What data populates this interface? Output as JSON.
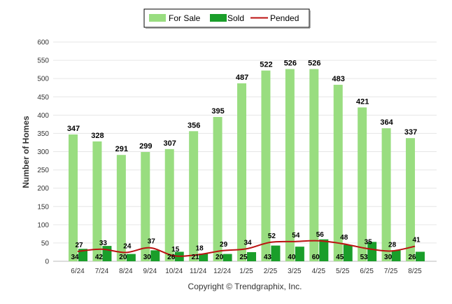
{
  "chart_data": {
    "type": "bar",
    "title": "",
    "xlabel": "",
    "ylabel": "Number of Homes",
    "ylim": [
      0,
      600
    ],
    "ytick_step": 50,
    "grid": true,
    "legend_position": "top-center",
    "categories": [
      "6/24",
      "7/24",
      "8/24",
      "9/24",
      "10/24",
      "11/24",
      "12/24",
      "1/25",
      "2/25",
      "3/25",
      "4/25",
      "5/25",
      "6/25",
      "7/25",
      "8/25"
    ],
    "series": [
      {
        "name": "For Sale",
        "kind": "bar",
        "color": "#99dd80",
        "values": [
          347,
          328,
          291,
          299,
          307,
          356,
          395,
          487,
          522,
          526,
          526,
          483,
          421,
          364,
          337
        ]
      },
      {
        "name": "Sold",
        "kind": "bar",
        "color": "#1a9e2a",
        "values": [
          34,
          42,
          20,
          30,
          26,
          21,
          20,
          25,
          43,
          40,
          60,
          45,
          53,
          30,
          26
        ]
      },
      {
        "name": "Pended",
        "kind": "line",
        "color": "#bb1111",
        "values": [
          27,
          33,
          24,
          37,
          15,
          18,
          29,
          34,
          52,
          54,
          56,
          48,
          35,
          28,
          41
        ]
      }
    ]
  },
  "footer": {
    "copyright": "Copyright © Trendgraphix, Inc."
  }
}
